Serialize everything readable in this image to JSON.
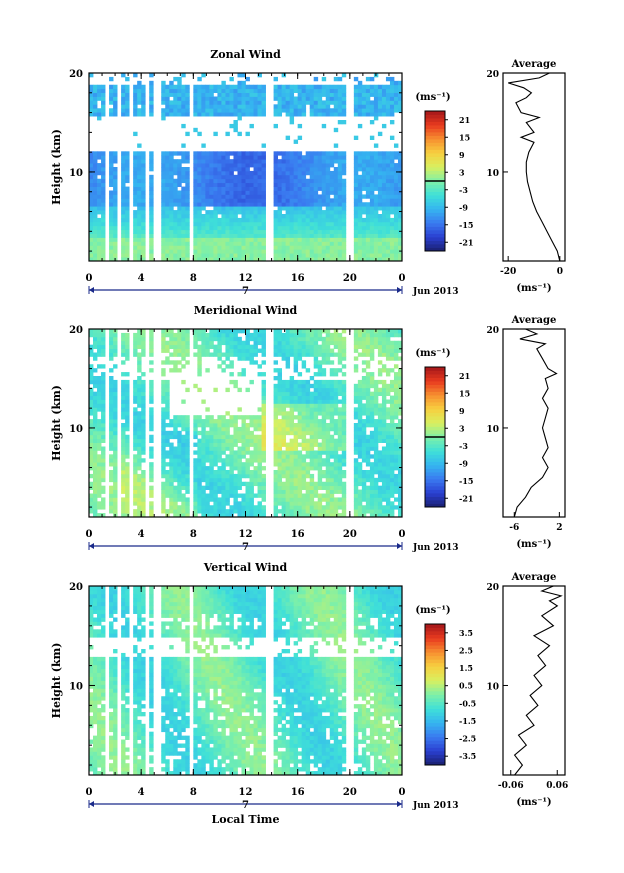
{
  "figure": {
    "month_label": "Jun 2013",
    "day_label": "7",
    "xlabel": "Local Time",
    "ylabel": "Height (km)",
    "unit_label": "(ms⁻¹)",
    "avg_title": "Average",
    "avg_unit": "(ms⁻¹)"
  },
  "colors": {
    "background": "#ffffff",
    "axis": "#000000",
    "day_marker": "#1a2a8a",
    "colormap": [
      "#1a1f6e",
      "#2a3fd0",
      "#3a7af0",
      "#35b5f0",
      "#3fe0d8",
      "#7ef0a8",
      "#d8f060",
      "#f7d040",
      "#f79030",
      "#e83a1f",
      "#a4161a"
    ]
  },
  "chart_data": [
    {
      "type": "heatmap",
      "title": "Zonal Wind",
      "x_ticks": [
        "0",
        "4",
        "8",
        "12",
        "16",
        "20",
        "0"
      ],
      "xlim": [
        0,
        24
      ],
      "y_ticks": [
        "10",
        "20"
      ],
      "ylim": [
        1,
        20
      ],
      "colorbar": {
        "ticks": [
          "21",
          "15",
          "9",
          "3",
          "-3",
          "-9",
          "-15",
          "-21"
        ],
        "range": [
          -24,
          24
        ]
      },
      "profile": {
        "title": "Average",
        "x_ticks": [
          "-20",
          "0"
        ],
        "xlim": [
          -22,
          2
        ],
        "y_ticks": [
          "10",
          "20"
        ],
        "points": [
          [
            0,
            1
          ],
          [
            -1,
            2
          ],
          [
            -3,
            3
          ],
          [
            -5,
            4
          ],
          [
            -7,
            5
          ],
          [
            -9,
            6
          ],
          [
            -10.5,
            7
          ],
          [
            -11.5,
            8
          ],
          [
            -12.5,
            9
          ],
          [
            -13,
            10
          ],
          [
            -13,
            11
          ],
          [
            -12,
            12
          ],
          [
            -10,
            13
          ],
          [
            -15,
            13.5
          ],
          [
            -10,
            14
          ],
          [
            -13,
            15
          ],
          [
            -8,
            15.5
          ],
          [
            -15,
            16
          ],
          [
            -17,
            17
          ],
          [
            -13,
            17.5
          ],
          [
            -11,
            18
          ],
          [
            -14,
            18.5
          ],
          [
            -20,
            19
          ],
          [
            -8,
            19.5
          ],
          [
            -4,
            20
          ]
        ]
      }
    },
    {
      "type": "heatmap",
      "title": "Meridional Wind",
      "x_ticks": [
        "0",
        "4",
        "8",
        "12",
        "16",
        "20",
        "0"
      ],
      "xlim": [
        0,
        24
      ],
      "y_ticks": [
        "10",
        "20"
      ],
      "ylim": [
        1,
        20
      ],
      "colorbar": {
        "ticks": [
          "21",
          "15",
          "9",
          "3",
          "-3",
          "-9",
          "-15",
          "-21"
        ],
        "range": [
          -24,
          24
        ]
      },
      "profile": {
        "title": "Average",
        "x_ticks": [
          "-6",
          "2"
        ],
        "xlim": [
          -8,
          3
        ],
        "y_ticks": [
          "10",
          "20"
        ],
        "points": [
          [
            -6,
            1
          ],
          [
            -5.5,
            2
          ],
          [
            -4,
            3
          ],
          [
            -3,
            4
          ],
          [
            -1,
            5
          ],
          [
            0,
            6
          ],
          [
            -1,
            7
          ],
          [
            0,
            8
          ],
          [
            -0.5,
            9
          ],
          [
            -1,
            10
          ],
          [
            -0.5,
            11
          ],
          [
            0,
            12
          ],
          [
            -1,
            13
          ],
          [
            0,
            14
          ],
          [
            -0.5,
            15
          ],
          [
            1.5,
            15.5
          ],
          [
            0,
            16
          ],
          [
            -1,
            17
          ],
          [
            -2,
            18
          ],
          [
            -0.5,
            18.5
          ],
          [
            -5,
            19
          ],
          [
            -2,
            19.5
          ],
          [
            -4,
            20
          ]
        ]
      }
    },
    {
      "type": "heatmap",
      "title": "Vertical Wind",
      "x_ticks": [
        "0",
        "4",
        "8",
        "12",
        "16",
        "20",
        "0"
      ],
      "xlim": [
        0,
        24
      ],
      "y_ticks": [
        "10",
        "20"
      ],
      "ylim": [
        1,
        20
      ],
      "colorbar": {
        "ticks": [
          "3.5",
          "2.5",
          "1.5",
          "0.5",
          "-0.5",
          "-1.5",
          "-2.5",
          "-3.5"
        ],
        "range": [
          -4,
          4
        ]
      },
      "profile": {
        "title": "Average",
        "x_ticks": [
          "-0.06",
          "0.06"
        ],
        "xlim": [
          -0.08,
          0.08
        ],
        "y_ticks": [
          "10",
          "20"
        ],
        "points": [
          [
            -0.05,
            1
          ],
          [
            -0.03,
            2
          ],
          [
            -0.05,
            3
          ],
          [
            -0.02,
            4
          ],
          [
            -0.04,
            5
          ],
          [
            0.0,
            6
          ],
          [
            -0.02,
            7
          ],
          [
            0.01,
            8
          ],
          [
            -0.01,
            9
          ],
          [
            0.02,
            10
          ],
          [
            0.0,
            11
          ],
          [
            0.03,
            12
          ],
          [
            0.01,
            13
          ],
          [
            0.04,
            14
          ],
          [
            0.0,
            15
          ],
          [
            0.05,
            16
          ],
          [
            0.02,
            17
          ],
          [
            0.06,
            18
          ],
          [
            0.04,
            18.5
          ],
          [
            0.07,
            19
          ],
          [
            0.02,
            19.5
          ],
          [
            0.05,
            20
          ]
        ]
      }
    }
  ]
}
